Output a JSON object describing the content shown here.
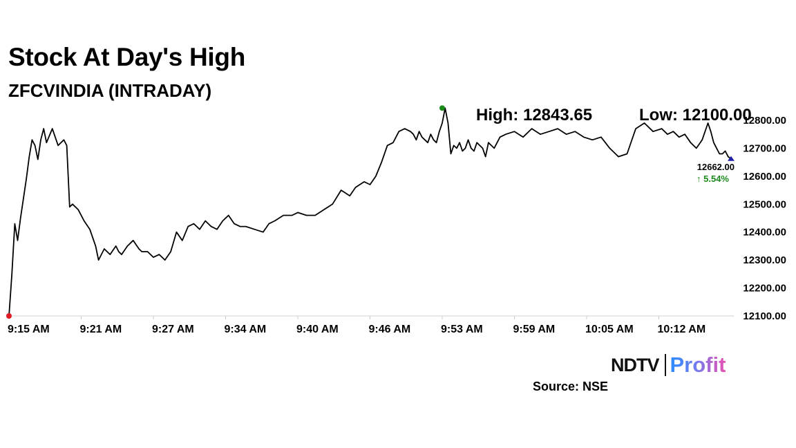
{
  "header": {
    "title": "Stock At Day's High",
    "subtitle": "ZFCVINDIA (INTRADAY)"
  },
  "annotations": {
    "high_label": "High: 12843.65",
    "low_label": "Low: 12100.00",
    "last_price": "12662.00",
    "change": "↑ 5.54%"
  },
  "footer": {
    "logo_text": "NDTV",
    "logo_text2": "Profit",
    "source": "Source: NSE"
  },
  "colors": {
    "line": "#000000",
    "high_marker": "#1a8a1a",
    "low_marker": "#e01b24",
    "last_marker": "#1f1fa8",
    "change": "#1a8a1a"
  },
  "chart_data": {
    "type": "line",
    "title": "ZFCVINDIA (INTRADAY)",
    "xlabel": "",
    "ylabel": "",
    "ylim": [
      12100,
      12800
    ],
    "xlim": [
      0,
      250
    ],
    "grid": false,
    "y_ticks": [
      12800,
      12700,
      12600,
      12500,
      12400,
      12300,
      12200,
      12100
    ],
    "y_tick_labels": [
      "12800.00",
      "12700.00",
      "12600.00",
      "12500.00",
      "12400.00",
      "12300.00",
      "12200.00",
      "12100.00"
    ],
    "x_ticks": [
      0,
      25,
      50,
      75,
      100,
      125,
      150,
      175,
      200,
      225
    ],
    "x_tick_labels": [
      "9:15 AM",
      "9:21 AM",
      "9:27 AM",
      "9:34 AM",
      "9:40 AM",
      "9:46 AM",
      "9:53 AM",
      "9:59 AM",
      "10:05 AM",
      "10:12 AM"
    ],
    "series": [
      {
        "x": [
          0,
          1,
          2,
          3,
          4,
          5,
          6,
          7,
          8,
          9,
          10,
          11,
          12,
          13,
          15,
          17,
          19,
          20,
          21,
          22,
          24,
          26,
          28,
          30,
          31,
          33,
          35,
          37,
          38,
          39,
          41,
          43,
          45,
          46,
          48,
          50,
          52,
          54,
          56,
          58,
          60,
          62,
          64,
          66,
          68,
          70,
          72,
          74,
          76,
          78,
          80,
          82,
          85,
          88,
          90,
          92,
          95,
          98,
          100,
          103,
          106,
          109,
          112,
          115,
          118,
          120,
          123,
          125,
          127,
          129,
          131,
          133,
          135,
          137,
          139,
          140,
          141,
          142,
          143,
          144,
          145,
          146,
          147,
          148,
          149,
          150,
          151,
          152,
          153,
          154,
          155,
          156,
          157,
          158,
          159,
          160,
          161,
          162,
          163,
          164,
          165,
          166,
          167,
          168,
          169,
          170,
          172,
          175,
          178,
          181,
          184,
          187,
          190,
          193,
          196,
          199,
          202,
          205,
          208,
          211,
          214,
          217,
          220,
          223,
          226,
          228,
          230,
          232,
          234,
          236,
          238,
          240,
          242,
          243,
          244,
          245,
          246,
          247,
          248,
          249,
          250
        ],
        "y": [
          12100,
          12250,
          12430,
          12370,
          12450,
          12520,
          12590,
          12670,
          12730,
          12710,
          12660,
          12730,
          12770,
          12720,
          12770,
          12710,
          12730,
          12710,
          12490,
          12500,
          12480,
          12440,
          12410,
          12350,
          12300,
          12340,
          12320,
          12350,
          12330,
          12320,
          12350,
          12370,
          12340,
          12330,
          12330,
          12310,
          12320,
          12300,
          12330,
          12400,
          12370,
          12420,
          12430,
          12410,
          12440,
          12420,
          12410,
          12440,
          12460,
          12430,
          12420,
          12420,
          12410,
          12400,
          12430,
          12440,
          12460,
          12460,
          12470,
          12460,
          12460,
          12480,
          12500,
          12550,
          12530,
          12560,
          12580,
          12570,
          12600,
          12650,
          12710,
          12720,
          12760,
          12770,
          12760,
          12750,
          12730,
          12760,
          12740,
          12730,
          12720,
          12750,
          12730,
          12720,
          12760,
          12790,
          12843.65,
          12790,
          12680,
          12710,
          12700,
          12720,
          12690,
          12700,
          12730,
          12700,
          12690,
          12720,
          12710,
          12700,
          12670,
          12720,
          12710,
          12700,
          12720,
          12740,
          12750,
          12760,
          12740,
          12770,
          12750,
          12760,
          12770,
          12750,
          12760,
          12740,
          12730,
          12740,
          12700,
          12670,
          12680,
          12770,
          12790,
          12760,
          12770,
          12750,
          12760,
          12740,
          12750,
          12720,
          12700,
          12730,
          12790,
          12760,
          12720,
          12700,
          12680,
          12680,
          12690,
          12670,
          12662
        ]
      }
    ],
    "high": {
      "x": 150,
      "y": 12843.65
    },
    "low": {
      "x": 0,
      "y": 12100
    },
    "last": {
      "x": 250,
      "y": 12662
    }
  }
}
